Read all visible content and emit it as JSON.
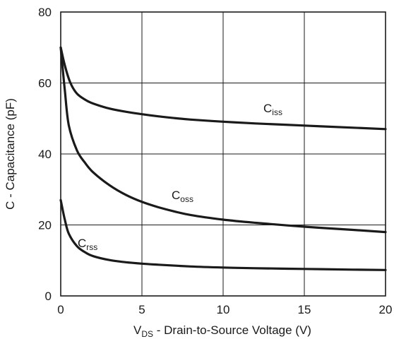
{
  "chart_data": {
    "type": "line",
    "xlabel": {
      "prefix": "V",
      "subscript": "DS",
      "text": " - Drain-to-Source Voltage (V)"
    },
    "ylabel": "C - Capacitance (pF)",
    "xlim": [
      0,
      20
    ],
    "ylim": [
      0,
      80
    ],
    "x_ticks": [
      0,
      5,
      10,
      15,
      20
    ],
    "y_ticks": [
      0,
      20,
      40,
      60,
      80
    ],
    "grid": true,
    "series": [
      {
        "name": "C_iss",
        "label": {
          "base": "C",
          "subscript": "iss"
        },
        "points": [
          [
            0,
            70
          ],
          [
            0.25,
            65
          ],
          [
            0.6,
            60
          ],
          [
            1,
            57
          ],
          [
            1.5,
            55.3
          ],
          [
            2,
            54.2
          ],
          [
            3,
            52.8
          ],
          [
            4,
            51.9
          ],
          [
            5,
            51.2
          ],
          [
            6,
            50.6
          ],
          [
            7,
            50.1
          ],
          [
            8,
            49.7
          ],
          [
            10,
            49.1
          ],
          [
            12,
            48.6
          ],
          [
            15,
            48
          ],
          [
            18,
            47.4
          ],
          [
            20,
            47
          ]
        ]
      },
      {
        "name": "C_oss",
        "label": {
          "base": "C",
          "subscript": "oss"
        },
        "points": [
          [
            0,
            70
          ],
          [
            0.25,
            58
          ],
          [
            0.5,
            48
          ],
          [
            1,
            41
          ],
          [
            1.5,
            37.5
          ],
          [
            2,
            34.8
          ],
          [
            3,
            31.2
          ],
          [
            4,
            28.5
          ],
          [
            5,
            26.5
          ],
          [
            6,
            25
          ],
          [
            7,
            23.8
          ],
          [
            8,
            22.8
          ],
          [
            10,
            21.5
          ],
          [
            12,
            20.6
          ],
          [
            15,
            19.5
          ],
          [
            18,
            18.6
          ],
          [
            20,
            18
          ]
        ]
      },
      {
        "name": "C_rss",
        "label": {
          "base": "C",
          "subscript": "rss"
        },
        "points": [
          [
            0,
            27
          ],
          [
            0.25,
            21.5
          ],
          [
            0.5,
            17.5
          ],
          [
            1,
            14
          ],
          [
            1.5,
            12.3
          ],
          [
            2,
            11.2
          ],
          [
            3,
            10.1
          ],
          [
            4,
            9.5
          ],
          [
            5,
            9.1
          ],
          [
            6,
            8.8
          ],
          [
            8,
            8.3
          ],
          [
            10,
            8
          ],
          [
            12,
            7.8
          ],
          [
            15,
            7.6
          ],
          [
            18,
            7.4
          ],
          [
            20,
            7.3
          ]
        ]
      }
    ]
  }
}
